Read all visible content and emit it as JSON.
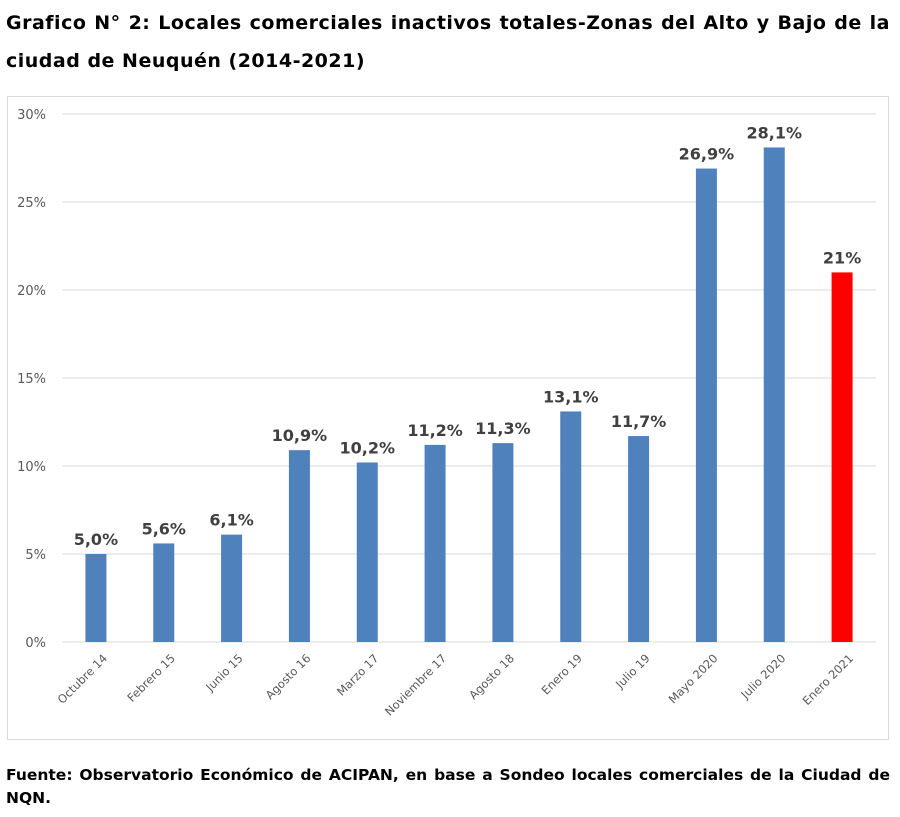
{
  "title": "Grafico N° 2: Locales comerciales inactivos totales-Zonas del Alto y Bajo de la ciudad de Neuquén (2014-2021)",
  "source": "Fuente: Observatorio Económico de ACIPAN, en base a Sondeo locales comerciales de la Ciudad de NQN.",
  "colors": {
    "bar": "#4f81bd",
    "highlight": "#ff0000",
    "grid": "#d9d9d9",
    "label": "#404040"
  },
  "chart_data": {
    "type": "bar",
    "title": "",
    "xlabel": "",
    "ylabel": "",
    "ylim": [
      0,
      30
    ],
    "y_ticks": [
      "0%",
      "5%",
      "10%",
      "15%",
      "20%",
      "25%",
      "30%"
    ],
    "grid": true,
    "categories": [
      "Octubre 14",
      "Febrero 15",
      "Junio 15",
      "Agosto 16",
      "Marzo 17",
      "Noviembre 17",
      "Agosto 18",
      "Enero 19",
      "Julio 19",
      "Mayo 2020",
      "Julio 2020",
      "Enero 2021"
    ],
    "values": [
      5.0,
      5.6,
      6.1,
      10.9,
      10.2,
      11.2,
      11.3,
      13.1,
      11.7,
      26.9,
      28.1,
      21
    ],
    "data_labels": [
      "5,0%",
      "5,6%",
      "6,1%",
      "10,9%",
      "10,2%",
      "11,2%",
      "11,3%",
      "13,1%",
      "11,7%",
      "26,9%",
      "28,1%",
      "21%"
    ],
    "highlight_index": 11
  }
}
